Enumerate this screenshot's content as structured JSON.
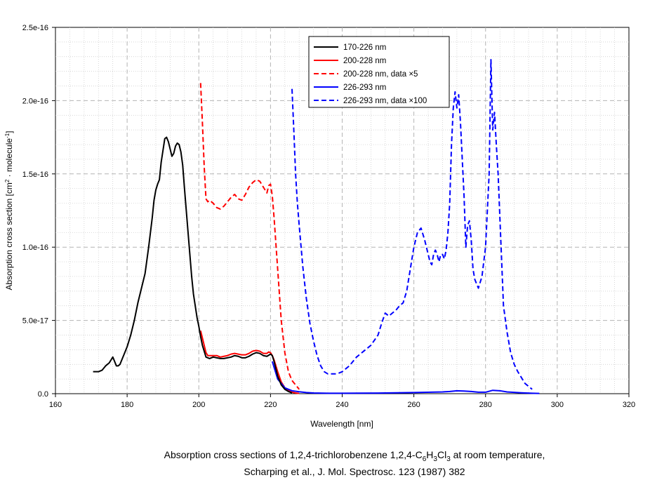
{
  "chart_data": {
    "type": "line",
    "xlabel": "Wavelength [nm]",
    "ylabel": "Absorption cross section [cm",
    "ylabel_sup1": "2",
    "ylabel_mid": " · molecule",
    "ylabel_sup2": "-1",
    "ylabel_end": "]",
    "xlim": [
      160,
      320
    ],
    "ylim": [
      0,
      2.5e-16
    ],
    "x_ticks": [
      "160",
      "180",
      "200",
      "220",
      "240",
      "260",
      "280",
      "300",
      "320"
    ],
    "y_ticks": [
      "0.0",
      "5.0e-17",
      "1.0e-16",
      "1.5e-16",
      "2.0e-16",
      "2.5e-16"
    ],
    "grid": true,
    "legend_position": "top-center",
    "series": [
      {
        "name": "170-226 nm",
        "color": "#000000",
        "style": "solid",
        "x": [
          170.5,
          172,
          173,
          174,
          175,
          175.5,
          176,
          176.5,
          177,
          177.5,
          178,
          179,
          180,
          181,
          182,
          183,
          184,
          185,
          186,
          187,
          187.5,
          188,
          188.5,
          189,
          189.5,
          190,
          190.5,
          191,
          191.5,
          192,
          192.5,
          193,
          193.5,
          194,
          194.5,
          195,
          195.5,
          196,
          196.5,
          197,
          197.5,
          198,
          198.5,
          199,
          199.5,
          200,
          200.5,
          201,
          201.5,
          202,
          203,
          204,
          205,
          206,
          207,
          208,
          209,
          210,
          211,
          212,
          213,
          214,
          215,
          216,
          217,
          218,
          219,
          220,
          220.5,
          221,
          222,
          223,
          224,
          225,
          226
        ],
        "y": [
          1.5e-17,
          1.5e-17,
          1.6e-17,
          1.9e-17,
          2.1e-17,
          2.3e-17,
          2.5e-17,
          2.2e-17,
          1.9e-17,
          1.9e-17,
          2e-17,
          2.6e-17,
          3.2e-17,
          4e-17,
          5e-17,
          6.2e-17,
          7.2e-17,
          8.2e-17,
          1e-16,
          1.2e-16,
          1.32e-16,
          1.39e-16,
          1.43e-16,
          1.46e-16,
          1.58e-16,
          1.66e-16,
          1.74e-16,
          1.75e-16,
          1.72e-16,
          1.67e-16,
          1.62e-16,
          1.64e-16,
          1.69e-16,
          1.71e-16,
          1.7e-16,
          1.65e-16,
          1.56e-16,
          1.4e-16,
          1.25e-16,
          1.1e-16,
          9.5e-17,
          8e-17,
          6.8e-17,
          6e-17,
          5.2e-17,
          4.6e-17,
          3.9e-17,
          3.3e-17,
          2.9e-17,
          2.5e-17,
          2.4e-17,
          2.5e-17,
          2.45e-17,
          2.4e-17,
          2.4e-17,
          2.45e-17,
          2.5e-17,
          2.6e-17,
          2.55e-17,
          2.45e-17,
          2.45e-17,
          2.55e-17,
          2.7e-17,
          2.8e-17,
          2.75e-17,
          2.6e-17,
          2.55e-17,
          2.7e-17,
          2.6e-17,
          2.2e-17,
          1.2e-17,
          6e-18,
          3e-18,
          1.5e-18,
          5e-19
        ]
      },
      {
        "name": "200-228 nm",
        "color": "#ff0000",
        "style": "solid",
        "x": [
          200.5,
          201,
          201.5,
          202,
          202.5,
          203,
          204,
          205,
          206,
          207,
          208,
          209,
          210,
          211,
          212,
          213,
          214,
          215,
          216,
          217,
          218,
          219,
          219.5,
          220,
          220.5,
          221,
          222,
          223,
          224,
          225,
          226,
          227,
          228
        ],
        "y": [
          4.3e-17,
          3.8e-17,
          3.3e-17,
          2.8e-17,
          2.6e-17,
          2.6e-17,
          2.6e-17,
          2.6e-17,
          2.5e-17,
          2.55e-17,
          2.6e-17,
          2.7e-17,
          2.75e-17,
          2.7e-17,
          2.65e-17,
          2.65e-17,
          2.75e-17,
          2.9e-17,
          2.95e-17,
          2.9e-17,
          2.75e-17,
          2.75e-17,
          2.85e-17,
          2.8e-17,
          2.6e-17,
          2.3e-17,
          1.5e-17,
          8e-18,
          4e-18,
          2e-18,
          1e-18,
          5e-19,
          2e-19
        ]
      },
      {
        "name": "200-228 nm, data ×5",
        "color": "#ff0000",
        "style": "dashed",
        "x": [
          200.5,
          201,
          201.5,
          202,
          202.5,
          203,
          204,
          205,
          206,
          207,
          208,
          209,
          210,
          211,
          212,
          213,
          214,
          215,
          216,
          217,
          218,
          219,
          219.5,
          220,
          220.5,
          221,
          222,
          223,
          224,
          225,
          226,
          227,
          228
        ],
        "y": [
          2.12e-16,
          1.85e-16,
          1.55e-16,
          1.33e-16,
          1.31e-16,
          1.32e-16,
          1.3e-16,
          1.27e-16,
          1.26e-16,
          1.28e-16,
          1.31e-16,
          1.34e-16,
          1.36e-16,
          1.33e-16,
          1.32e-16,
          1.36e-16,
          1.41e-16,
          1.44e-16,
          1.46e-16,
          1.45e-16,
          1.41e-16,
          1.37e-16,
          1.42e-16,
          1.43e-16,
          1.35e-16,
          1.2e-16,
          8.5e-17,
          5e-17,
          2.8e-17,
          1.5e-17,
          9e-18,
          6e-18,
          3e-18
        ]
      },
      {
        "name": "226-293 nm",
        "color": "#0000ff",
        "style": "solid",
        "x": [
          220.5,
          222,
          224,
          226,
          228,
          230,
          232,
          236,
          240,
          250,
          260,
          268,
          270,
          272,
          274,
          276,
          278,
          280,
          282,
          284,
          286,
          290,
          293,
          295
        ],
        "y": [
          2.2e-17,
          1e-17,
          4e-18,
          2e-18,
          1.3e-18,
          8e-19,
          5e-19,
          3e-19,
          3e-19,
          4e-19,
          8e-19,
          1.2e-18,
          1.5e-18,
          2e-18,
          1.8e-18,
          1.5e-18,
          1e-18,
          1e-18,
          2.3e-18,
          2e-18,
          1.2e-18,
          6e-19,
          3e-19,
          2e-19
        ]
      },
      {
        "name": "226-293 nm, data ×100",
        "color": "#0000ff",
        "style": "dashed",
        "x": [
          226,
          226.5,
          227,
          227.5,
          228,
          229,
          230,
          231,
          232,
          233,
          234,
          235,
          236,
          237,
          238,
          239,
          240,
          242,
          244,
          246,
          248,
          250,
          251,
          252,
          253,
          254,
          255,
          256,
          257,
          258,
          259,
          260,
          261,
          262,
          263,
          264,
          264.5,
          265,
          265.5,
          266,
          266.5,
          267,
          267.5,
          268,
          268.5,
          269,
          269.5,
          270,
          270.5,
          271,
          271.5,
          272,
          272.5,
          273,
          273.5,
          274,
          274.5,
          275,
          275.5,
          276,
          276.5,
          277,
          278,
          279,
          280,
          281,
          281.5,
          282,
          282.5,
          283,
          283.5,
          284,
          284.5,
          285,
          286,
          287,
          288,
          289,
          290,
          291,
          292,
          293
        ],
        "y": [
          2.08e-16,
          1.8e-16,
          1.5e-16,
          1.3e-16,
          1.15e-16,
          8.7e-17,
          6.5e-17,
          4.8e-17,
          3.6e-17,
          2.6e-17,
          1.9e-17,
          1.5e-17,
          1.35e-17,
          1.35e-17,
          1.35e-17,
          1.4e-17,
          1.5e-17,
          1.9e-17,
          2.5e-17,
          2.9e-17,
          3.3e-17,
          4e-17,
          4.8e-17,
          5.5e-17,
          5.3e-17,
          5.5e-17,
          5.7e-17,
          6e-17,
          6.2e-17,
          7e-17,
          8.5e-17,
          1e-16,
          1.1e-16,
          1.13e-16,
          1.05e-16,
          9.5e-17,
          9e-17,
          8.8e-17,
          9.5e-17,
          9.8e-17,
          9.5e-17,
          9e-17,
          9.5e-17,
          9.5e-17,
          9.2e-17,
          9.8e-17,
          1.1e-16,
          1.3e-16,
          1.7e-16,
          1.95e-16,
          2.06e-16,
          1.95e-16,
          2.04e-16,
          1.85e-16,
          1.6e-16,
          1.35e-16,
          1e-16,
          1.15e-16,
          1.18e-16,
          1.05e-16,
          8.5e-17,
          7.8e-17,
          7.2e-17,
          8e-17,
          1e-16,
          1.5e-16,
          2.28e-16,
          1.8e-16,
          1.92e-16,
          1.7e-16,
          1.5e-16,
          1.2e-16,
          9e-17,
          6e-17,
          4.2e-17,
          2.8e-17,
          2e-17,
          1.5e-17,
          1.1e-17,
          7e-18,
          5e-18,
          3e-18
        ]
      }
    ]
  },
  "caption": {
    "line1_a": "Absorption cross sections of 1,2,4-trichlorobenzene 1,2,4-C",
    "line1_s1": "6",
    "line1_b": "H",
    "line1_s2": "3",
    "line1_c": "Cl",
    "line1_s3": "3",
    "line1_d": " at room temperature,",
    "line2": "Scharping et al., J. Mol. Spectrosc. 123 (1987) 382"
  }
}
